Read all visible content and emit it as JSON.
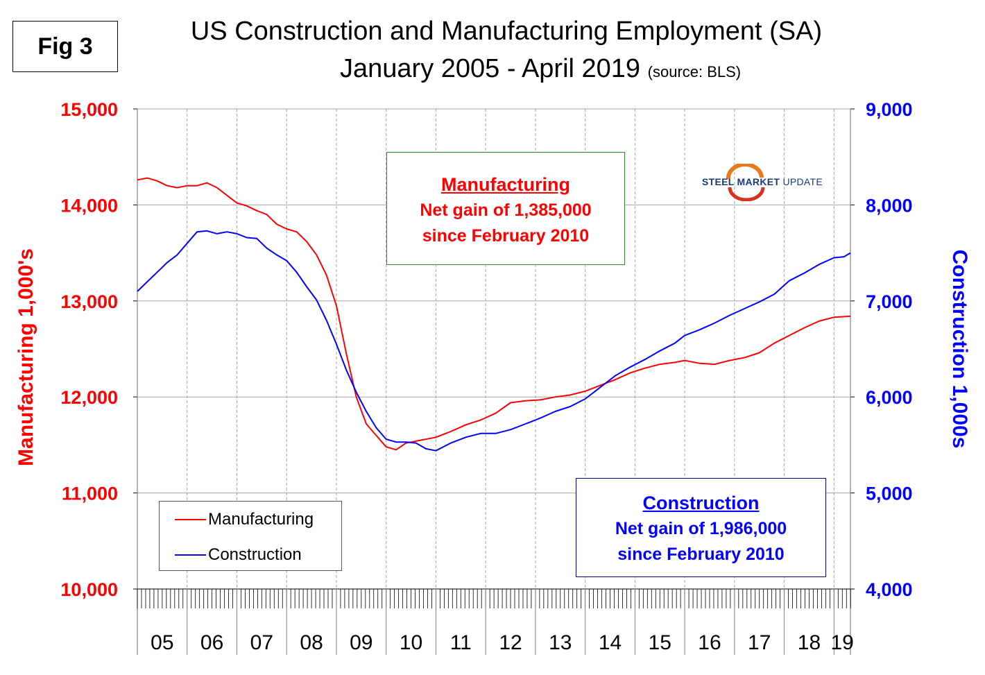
{
  "fig_label": "Fig 3",
  "title": "US Construction and Manufacturing Employment (SA)",
  "subtitle": "January 2005 - April 2019",
  "source": "(source: BLS)",
  "logo": {
    "bold": "STEEL MARKET",
    "light": "UPDATE"
  },
  "annotations": {
    "manufacturing": {
      "head": "Manufacturing",
      "line1": "Net gain of 1,385,000",
      "line2": "since February 2010"
    },
    "construction": {
      "head": "Construction",
      "line1": "Net gain of 1,986,000",
      "line2": "since February 2010"
    }
  },
  "legend": {
    "manufacturing": "Manufacturing",
    "construction": "Construction"
  },
  "colors": {
    "manufacturing": "#ff0000",
    "construction": "#0000ff",
    "grid": "#a6a6a6",
    "axis": "#808080"
  },
  "chart_data": {
    "type": "line",
    "title": "US Construction and Manufacturing Employment (SA)",
    "subtitle": "January 2005 - April 2019",
    "xlabel": "",
    "y_left_label": "Manufacturing  1,000's",
    "y_right_label": "Construction 1,000s",
    "x_range": [
      2005.0,
      2019.33
    ],
    "ylim_left": [
      10000,
      15000
    ],
    "ylim_right": [
      4000,
      9000
    ],
    "y_left_ticks": [
      "10,000",
      "11,000",
      "12,000",
      "13,000",
      "14,000",
      "15,000"
    ],
    "y_right_ticks": [
      "4,000",
      "5,000",
      "6,000",
      "7,000",
      "8,000",
      "9,000"
    ],
    "x_ticks": [
      "05",
      "06",
      "07",
      "08",
      "09",
      "10",
      "11",
      "12",
      "13",
      "14",
      "15",
      "16",
      "17",
      "18",
      "19"
    ],
    "legend_position": "bottom-left",
    "series": [
      {
        "name": "Manufacturing",
        "axis": "left",
        "x": [
          2005.0,
          2005.2,
          2005.4,
          2005.6,
          2005.8,
          2006.0,
          2006.2,
          2006.4,
          2006.6,
          2006.8,
          2007.0,
          2007.2,
          2007.4,
          2007.6,
          2007.8,
          2008.0,
          2008.2,
          2008.4,
          2008.6,
          2008.8,
          2009.0,
          2009.2,
          2009.4,
          2009.6,
          2009.8,
          2010.0,
          2010.2,
          2010.4,
          2010.6,
          2010.8,
          2011.0,
          2011.3,
          2011.6,
          2011.9,
          2012.2,
          2012.5,
          2012.8,
          2013.1,
          2013.4,
          2013.7,
          2014.0,
          2014.3,
          2014.6,
          2014.9,
          2015.2,
          2015.5,
          2015.8,
          2016.0,
          2016.3,
          2016.6,
          2016.9,
          2017.2,
          2017.5,
          2017.8,
          2018.1,
          2018.4,
          2018.7,
          2019.0,
          2019.33
        ],
        "values": [
          14260,
          14280,
          14250,
          14200,
          14180,
          14200,
          14200,
          14230,
          14180,
          14100,
          14020,
          13990,
          13940,
          13900,
          13800,
          13750,
          13720,
          13620,
          13480,
          13270,
          12950,
          12450,
          12000,
          11720,
          11600,
          11480,
          11450,
          11520,
          11540,
          11560,
          11580,
          11640,
          11710,
          11760,
          11830,
          11940,
          11960,
          11970,
          12000,
          12020,
          12060,
          12120,
          12180,
          12250,
          12300,
          12340,
          12360,
          12380,
          12350,
          12340,
          12380,
          12410,
          12460,
          12560,
          12640,
          12720,
          12790,
          12830,
          12840
        ]
      },
      {
        "name": "Construction",
        "axis": "right",
        "x": [
          2005.0,
          2005.2,
          2005.4,
          2005.6,
          2005.8,
          2006.0,
          2006.2,
          2006.4,
          2006.6,
          2006.8,
          2007.0,
          2007.2,
          2007.4,
          2007.6,
          2007.8,
          2008.0,
          2008.2,
          2008.4,
          2008.6,
          2008.8,
          2009.0,
          2009.2,
          2009.4,
          2009.6,
          2009.8,
          2010.0,
          2010.2,
          2010.4,
          2010.6,
          2010.8,
          2011.0,
          2011.3,
          2011.6,
          2011.9,
          2012.2,
          2012.5,
          2012.8,
          2013.1,
          2013.4,
          2013.7,
          2014.0,
          2014.3,
          2014.6,
          2014.9,
          2015.2,
          2015.5,
          2015.8,
          2016.0,
          2016.3,
          2016.6,
          2016.9,
          2017.2,
          2017.5,
          2017.8,
          2018.1,
          2018.4,
          2018.7,
          2019.0,
          2019.2,
          2019.33
        ],
        "values": [
          7100,
          7200,
          7300,
          7400,
          7480,
          7600,
          7720,
          7730,
          7700,
          7720,
          7700,
          7660,
          7650,
          7550,
          7480,
          7420,
          7300,
          7150,
          7010,
          6800,
          6550,
          6280,
          6050,
          5850,
          5680,
          5560,
          5530,
          5530,
          5520,
          5460,
          5440,
          5520,
          5580,
          5620,
          5620,
          5660,
          5720,
          5780,
          5850,
          5900,
          5980,
          6100,
          6220,
          6310,
          6390,
          6480,
          6560,
          6640,
          6700,
          6770,
          6850,
          6920,
          6990,
          7070,
          7210,
          7290,
          7380,
          7450,
          7460,
          7500
        ]
      }
    ]
  }
}
